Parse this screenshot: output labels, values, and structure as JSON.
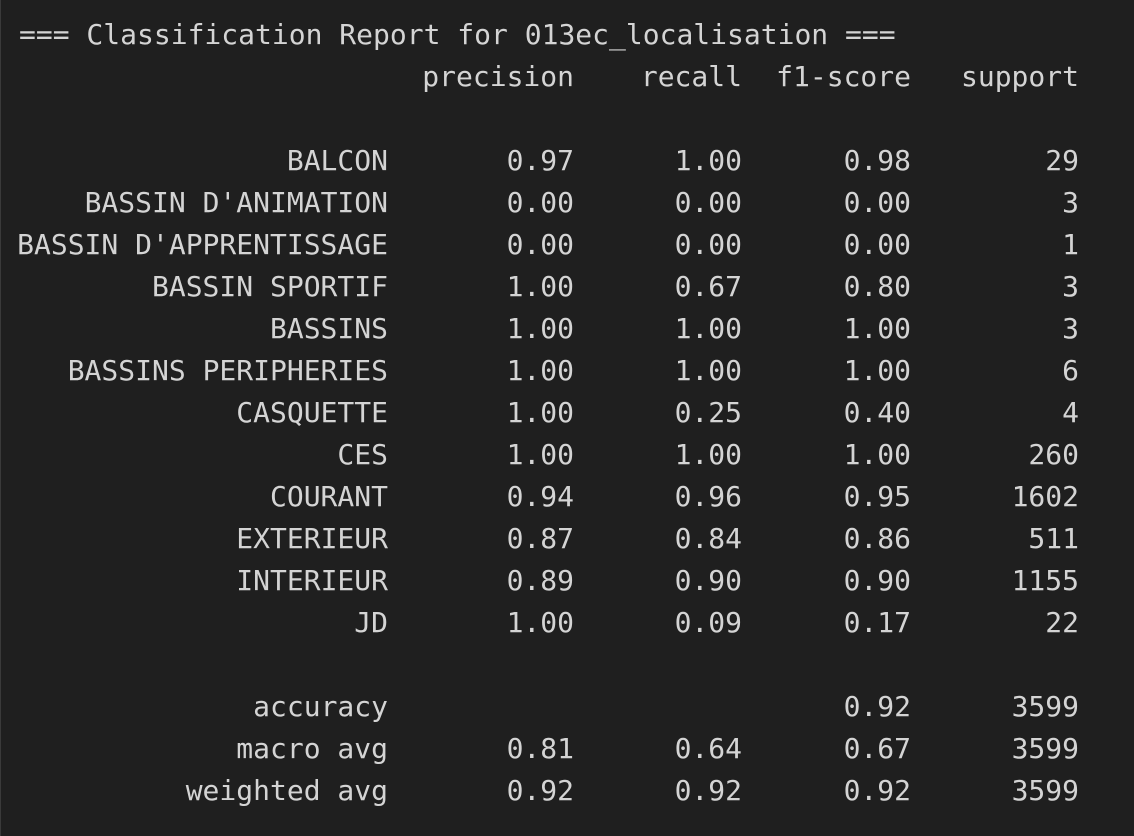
{
  "title": "=== Classification Report for 013ec_localisation ===",
  "headers": {
    "precision": "precision",
    "recall": "recall",
    "f1": "f1-score",
    "support": "support"
  },
  "rows": [
    {
      "label": "BALCON",
      "precision": "0.97",
      "recall": "1.00",
      "f1": "0.98",
      "support": "29"
    },
    {
      "label": "BASSIN D'ANIMATION",
      "precision": "0.00",
      "recall": "0.00",
      "f1": "0.00",
      "support": "3"
    },
    {
      "label": "BASSIN D'APPRENTISSAGE",
      "precision": "0.00",
      "recall": "0.00",
      "f1": "0.00",
      "support": "1"
    },
    {
      "label": "BASSIN SPORTIF",
      "precision": "1.00",
      "recall": "0.67",
      "f1": "0.80",
      "support": "3"
    },
    {
      "label": "BASSINS",
      "precision": "1.00",
      "recall": "1.00",
      "f1": "1.00",
      "support": "3"
    },
    {
      "label": "BASSINS PERIPHERIES",
      "precision": "1.00",
      "recall": "1.00",
      "f1": "1.00",
      "support": "6"
    },
    {
      "label": "CASQUETTE",
      "precision": "1.00",
      "recall": "0.25",
      "f1": "0.40",
      "support": "4"
    },
    {
      "label": "CES",
      "precision": "1.00",
      "recall": "1.00",
      "f1": "1.00",
      "support": "260"
    },
    {
      "label": "COURANT",
      "precision": "0.94",
      "recall": "0.96",
      "f1": "0.95",
      "support": "1602"
    },
    {
      "label": "EXTERIEUR",
      "precision": "0.87",
      "recall": "0.84",
      "f1": "0.86",
      "support": "511"
    },
    {
      "label": "INTERIEUR",
      "precision": "0.89",
      "recall": "0.90",
      "f1": "0.90",
      "support": "1155"
    },
    {
      "label": "JD",
      "precision": "1.00",
      "recall": "0.09",
      "f1": "0.17",
      "support": "22"
    }
  ],
  "summary": [
    {
      "label": "accuracy",
      "precision": "",
      "recall": "",
      "f1": "0.92",
      "support": "3599"
    },
    {
      "label": "macro avg",
      "precision": "0.81",
      "recall": "0.64",
      "f1": "0.67",
      "support": "3599"
    },
    {
      "label": "weighted avg",
      "precision": "0.92",
      "recall": "0.92",
      "f1": "0.92",
      "support": "3599"
    }
  ]
}
